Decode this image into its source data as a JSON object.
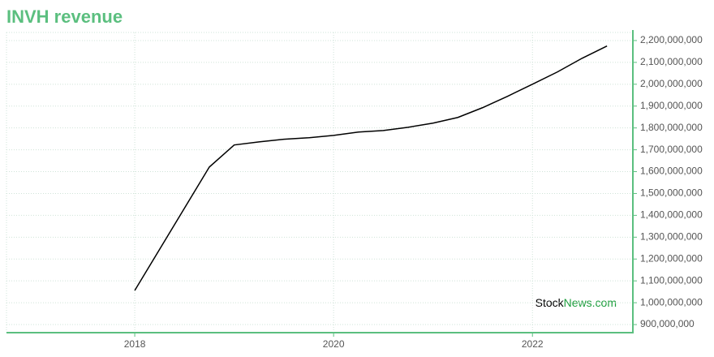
{
  "chart_data": {
    "type": "line",
    "title": "INVH revenue",
    "x": [
      2018.0,
      2018.75,
      2019.0,
      2019.25,
      2019.5,
      2019.75,
      2020.0,
      2020.25,
      2020.5,
      2020.75,
      2021.0,
      2021.25,
      2021.5,
      2021.75,
      2022.0,
      2022.25,
      2022.5,
      2022.75
    ],
    "values": [
      1056000000,
      1621000000,
      1722000000,
      1736000000,
      1748000000,
      1755000000,
      1766000000,
      1781000000,
      1788000000,
      1803000000,
      1822000000,
      1848000000,
      1893000000,
      1945000000,
      2000000000,
      2056000000,
      2119000000,
      2175000000
    ],
    "color": "#000000",
    "xlim": [
      2016.71,
      2023.01
    ],
    "xticks": [
      2018,
      2020,
      2022
    ],
    "ylim": [
      863000000,
      2237000000
    ],
    "yticks": [
      {
        "value": 900000000,
        "label": "900,000,000"
      },
      {
        "value": 1000000000,
        "label": "1,000,000,000"
      },
      {
        "value": 1100000000,
        "label": "1,100,000,000"
      },
      {
        "value": 1200000000,
        "label": "1,200,000,000"
      },
      {
        "value": 1300000000,
        "label": "1,300,000,000"
      },
      {
        "value": 1400000000,
        "label": "1,400,000,000"
      },
      {
        "value": 1500000000,
        "label": "1,500,000,000"
      },
      {
        "value": 1600000000,
        "label": "1,600,000,000"
      },
      {
        "value": 1700000000,
        "label": "1,700,000,000"
      },
      {
        "value": 1800000000,
        "label": "1,800,000,000"
      },
      {
        "value": 1900000000,
        "label": "1,900,000,000"
      },
      {
        "value": 2000000000,
        "label": "2,000,000,000"
      },
      {
        "value": 2100000000,
        "label": "2,100,000,000"
      },
      {
        "value": 2200000000,
        "label": "2,200,000,000"
      }
    ],
    "grid": true,
    "watermark": {
      "part1": "Stock",
      "part2": "News.com"
    }
  }
}
